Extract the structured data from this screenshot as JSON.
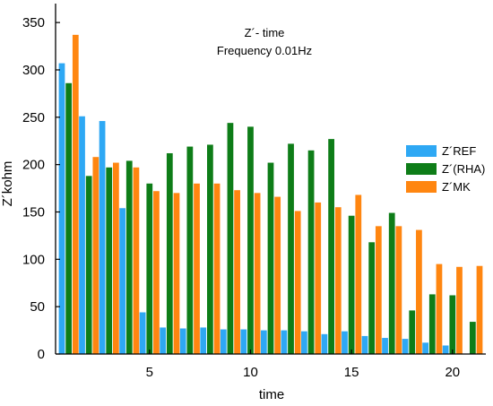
{
  "chart_data": {
    "type": "bar",
    "annotations": [
      "Z´- time",
      "Frequency 0.01Hz"
    ],
    "xlabel": "time",
    "ylabel": "Z´kohm",
    "x": [
      1,
      2,
      3,
      4,
      5,
      6,
      7,
      8,
      9,
      10,
      11,
      12,
      13,
      14,
      15,
      16,
      17,
      18,
      19,
      20,
      21
    ],
    "xlim": [
      0.35,
      21.65
    ],
    "ylim": [
      0,
      370
    ],
    "xticks": [
      5,
      10,
      15,
      20
    ],
    "yticks": [
      0,
      50,
      100,
      150,
      200,
      250,
      300,
      350
    ],
    "grid": false,
    "legend_position": "right",
    "series": [
      {
        "name": "Z´REF",
        "color": "#2ea8f4",
        "values": [
          307,
          251,
          246,
          154,
          44,
          28,
          27,
          28,
          26,
          26,
          25,
          25,
          24,
          21,
          24,
          19,
          17,
          16,
          12,
          9,
          0
        ]
      },
      {
        "name": "Z´(RHA)",
        "color": "#0e7d18",
        "values": [
          286,
          188,
          197,
          204,
          180,
          212,
          219,
          221,
          244,
          240,
          202,
          222,
          215,
          227,
          146,
          118,
          149,
          46,
          63,
          62,
          34
        ]
      },
      {
        "name": "Z´MK",
        "color": "#ff8610",
        "values": [
          337,
          208,
          202,
          197,
          172,
          170,
          180,
          180,
          173,
          170,
          166,
          151,
          160,
          155,
          168,
          135,
          135,
          131,
          95,
          92,
          93
        ]
      }
    ]
  }
}
